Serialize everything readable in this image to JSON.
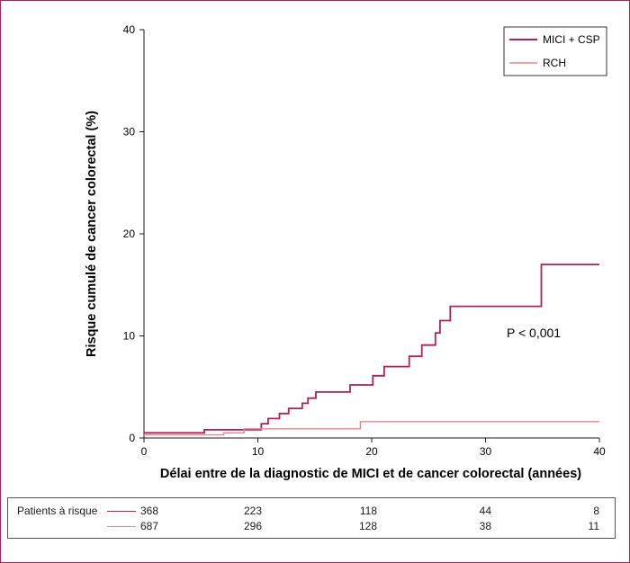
{
  "chart_data": {
    "type": "line",
    "xlabel": "Délai entre de la diagnostic de MICI et de cancer colorectal (années)",
    "ylabel": "Risque cumulé de cancer colorectal (%)",
    "xlim": [
      0,
      40
    ],
    "ylim": [
      0,
      40
    ],
    "x_ticks": [
      "0",
      "10",
      "20",
      "30",
      "40"
    ],
    "y_ticks": [
      "0",
      "10",
      "20",
      "30",
      "40"
    ],
    "grid": false,
    "legend_position": "top-right",
    "annotation": "P < 0,001",
    "series": [
      {
        "name": "MICI + CSP",
        "color": "#a8235a",
        "step_points": [
          [
            0,
            0.5
          ],
          [
            5.3,
            0.5
          ],
          [
            5.3,
            0.8
          ],
          [
            10.3,
            0.8
          ],
          [
            10.3,
            1.4
          ],
          [
            10.9,
            1.4
          ],
          [
            10.9,
            1.9
          ],
          [
            11.9,
            1.9
          ],
          [
            11.9,
            2.4
          ],
          [
            12.7,
            2.4
          ],
          [
            12.7,
            2.9
          ],
          [
            13.9,
            2.9
          ],
          [
            13.9,
            3.4
          ],
          [
            14.4,
            3.4
          ],
          [
            14.4,
            3.9
          ],
          [
            15.1,
            3.9
          ],
          [
            15.1,
            4.5
          ],
          [
            18.1,
            4.5
          ],
          [
            18.1,
            5.2
          ],
          [
            20.1,
            5.2
          ],
          [
            20.1,
            6.1
          ],
          [
            21.1,
            6.1
          ],
          [
            21.1,
            7.0
          ],
          [
            23.3,
            7.0
          ],
          [
            23.3,
            8.0
          ],
          [
            24.4,
            8.0
          ],
          [
            24.4,
            9.1
          ],
          [
            25.6,
            9.1
          ],
          [
            25.6,
            10.3
          ],
          [
            26.0,
            10.3
          ],
          [
            26.0,
            11.5
          ],
          [
            26.9,
            11.5
          ],
          [
            26.9,
            12.9
          ],
          [
            34.9,
            12.9
          ],
          [
            34.9,
            17.0
          ],
          [
            40,
            17.0
          ]
        ]
      },
      {
        "name": "RCH",
        "color": "#e8868f",
        "step_points": [
          [
            0,
            0.3
          ],
          [
            4.9,
            0.3
          ],
          [
            4.9,
            0.3
          ],
          [
            7.0,
            0.3
          ],
          [
            7.0,
            0.5
          ],
          [
            8.8,
            0.5
          ],
          [
            8.8,
            0.9
          ],
          [
            19.0,
            0.9
          ],
          [
            19.0,
            1.6
          ],
          [
            40,
            1.6
          ]
        ]
      }
    ]
  },
  "risk_table": {
    "label": "Patients à risque",
    "rows": [
      {
        "color": "#a8235a",
        "values": [
          "368",
          "223",
          "118",
          "44",
          "8"
        ]
      },
      {
        "color": "#e8868f",
        "values": [
          "687",
          "296",
          "128",
          "38",
          "11"
        ]
      }
    ]
  }
}
